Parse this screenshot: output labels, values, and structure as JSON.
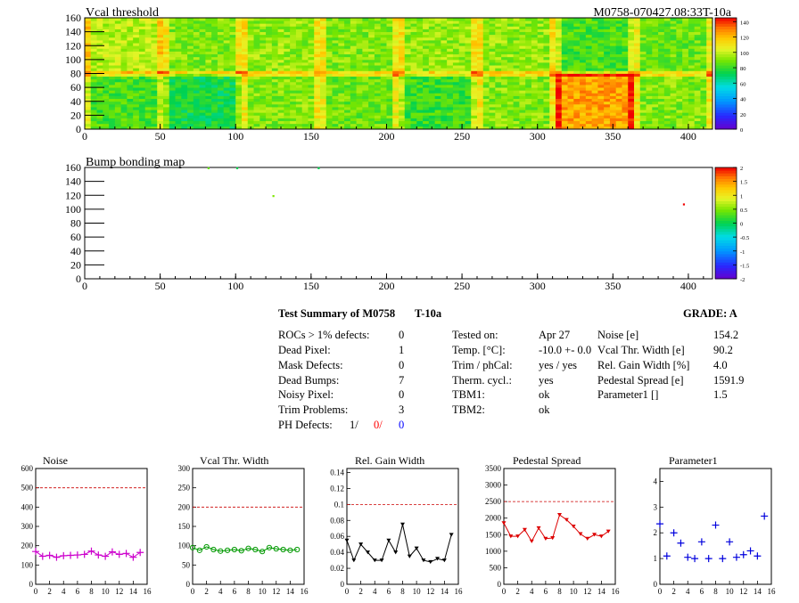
{
  "maps": [
    {
      "title": "Vcal threshold",
      "module_label": "M0758-070427.08:33T-10a",
      "xlim": [
        0,
        416
      ],
      "ylim": [
        0,
        160
      ],
      "x_ticks": [
        "0",
        "50",
        "100",
        "150",
        "200",
        "250",
        "300",
        "350",
        "400"
      ],
      "y_ticks": [
        "0",
        "20",
        "40",
        "60",
        "80",
        "100",
        "120",
        "140",
        "160"
      ],
      "z_ticks": [
        "0",
        "20",
        "40",
        "60",
        "80",
        "100",
        "120",
        "140"
      ],
      "zlim": [
        0,
        145
      ]
    },
    {
      "title": "Bump bonding map",
      "xlim": [
        0,
        416
      ],
      "ylim": [
        0,
        160
      ],
      "x_ticks": [
        "0",
        "50",
        "100",
        "150",
        "200",
        "250",
        "300",
        "350",
        "400"
      ],
      "y_ticks": [
        "0",
        "20",
        "40",
        "60",
        "80",
        "100",
        "120",
        "140",
        "160"
      ],
      "z_ticks": [
        "-2",
        "-1.5",
        "-1",
        "-0.5",
        "0",
        "0.5",
        "1",
        "1.5",
        "2"
      ],
      "zlim": [
        -2,
        2
      ]
    }
  ],
  "summary": {
    "title": "Test Summary of M0758",
    "test_tag": "T-10a",
    "grade_label": "GRADE:  A",
    "defects": [
      {
        "label": "ROCs > 1% defects:",
        "value": "0"
      },
      {
        "label": "Dead Pixel:",
        "value": "1"
      },
      {
        "label": "Mask Defects:",
        "value": "0"
      },
      {
        "label": "Dead Bumps:",
        "value": "7"
      },
      {
        "label": "Noisy Pixel:",
        "value": "0"
      },
      {
        "label": "Trim Problems:",
        "value": "3"
      }
    ],
    "ph_defects": {
      "label": "PH Defects:",
      "v1": "1/",
      "v2": "0/",
      "v3": "0"
    },
    "conditions": [
      {
        "label": "Tested on:",
        "value": "Apr 27"
      },
      {
        "label": "Temp. [°C]:",
        "value": "-10.0 +- 0.0"
      },
      {
        "label": "Trim / phCal:",
        "value": "yes / yes"
      },
      {
        "label": "Therm. cycl.:",
        "value": "yes"
      },
      {
        "label": "TBM1:",
        "value": "ok"
      },
      {
        "label": "TBM2:",
        "value": "ok"
      }
    ],
    "parameters": [
      {
        "label": "Noise [e]",
        "value": "154.2"
      },
      {
        "label": "Vcal Thr. Width [e]",
        "value": "90.2"
      },
      {
        "label": "Rel. Gain Width [%]",
        "value": "4.0"
      },
      {
        "label": "Pedestal Spread [e]",
        "value": "1591.9"
      },
      {
        "label": "Parameter1 []",
        "value": "1.5"
      }
    ]
  },
  "colors": {
    "noise": "#cc00cc",
    "vcal": "#009900",
    "gain": "#000000",
    "pedestal": "#dd0000",
    "param1": "#0000dd",
    "limit_line": "#cc0000",
    "ph_red": "#ff0000",
    "ph_blue": "#0000ff"
  },
  "chart_data": [
    {
      "type": "heatmap",
      "title": "Vcal threshold",
      "description_values": "per-ROC mean threshold",
      "x_ticks": [
        0,
        50,
        100,
        150,
        200,
        250,
        300,
        350,
        400
      ],
      "y_ticks": [
        0,
        20,
        40,
        60,
        80,
        100,
        120,
        140,
        160
      ],
      "z_range": [
        0,
        140
      ],
      "roc_means_top": [
        95,
        88,
        90,
        88,
        90,
        90,
        80,
        85
      ],
      "roc_means_bottom": [
        80,
        72,
        88,
        85,
        78,
        88,
        120,
        88
      ]
    },
    {
      "type": "scatter",
      "title": "Bump bonding map",
      "points": [
        {
          "x": 82,
          "y": 159,
          "z": 0.4
        },
        {
          "x": 101,
          "y": 159,
          "z": 0.0
        },
        {
          "x": 155,
          "y": 159,
          "z": 0.0
        },
        {
          "x": 125,
          "y": 119,
          "z": 0.5
        },
        {
          "x": 397,
          "y": 107,
          "z": 2.0
        }
      ],
      "z_range": [
        -2,
        2
      ]
    },
    {
      "type": "line",
      "title": "Noise",
      "x": [
        0,
        1,
        2,
        3,
        4,
        5,
        6,
        7,
        8,
        9,
        10,
        11,
        12,
        13,
        14,
        15
      ],
      "values": [
        170,
        145,
        150,
        140,
        148,
        150,
        152,
        155,
        172,
        152,
        145,
        168,
        155,
        160,
        140,
        165
      ],
      "xlim": [
        0,
        16
      ],
      "ylim": [
        0,
        600
      ],
      "y_ticks": [
        0,
        100,
        200,
        300,
        400,
        500,
        600
      ],
      "limit": 500
    },
    {
      "type": "line",
      "title": "Vcal Thr. Width",
      "x": [
        0,
        1,
        2,
        3,
        4,
        5,
        6,
        7,
        8,
        9,
        10,
        11,
        12,
        13,
        14,
        15
      ],
      "values": [
        95,
        88,
        97,
        90,
        86,
        88,
        90,
        87,
        93,
        90,
        85,
        95,
        92,
        90,
        88,
        90
      ],
      "xlim": [
        0,
        16
      ],
      "ylim": [
        0,
        300
      ],
      "y_ticks": [
        0,
        50,
        100,
        150,
        200,
        250,
        300
      ],
      "limit": 200
    },
    {
      "type": "line",
      "title": "Rel. Gain Width",
      "x": [
        0,
        1,
        2,
        3,
        4,
        5,
        6,
        7,
        8,
        9,
        10,
        11,
        12,
        13,
        14,
        15
      ],
      "values": [
        0.055,
        0.03,
        0.05,
        0.04,
        0.03,
        0.03,
        0.055,
        0.04,
        0.075,
        0.035,
        0.045,
        0.03,
        0.028,
        0.032,
        0.03,
        0.062
      ],
      "xlim": [
        0,
        16
      ],
      "ylim": [
        0,
        0.145
      ],
      "y_ticks": [
        0,
        0.02,
        0.04,
        0.06,
        0.08,
        0.1,
        0.12,
        0.14
      ],
      "limit": 0.1
    },
    {
      "type": "line",
      "title": "Pedestal Spread",
      "x": [
        0,
        1,
        2,
        3,
        4,
        5,
        6,
        7,
        8,
        9,
        10,
        11,
        12,
        13,
        14,
        15
      ],
      "values": [
        1850,
        1450,
        1450,
        1650,
        1300,
        1700,
        1380,
        1400,
        2100,
        1950,
        1750,
        1520,
        1380,
        1500,
        1450,
        1600
      ],
      "xlim": [
        0,
        16
      ],
      "ylim": [
        0,
        3500
      ],
      "y_ticks": [
        0,
        500,
        1000,
        1500,
        2000,
        2500,
        3000,
        3500
      ],
      "limit": 2500
    },
    {
      "type": "scatter",
      "title": "Parameter1",
      "x": [
        0,
        1,
        2,
        3,
        4,
        5,
        6,
        7,
        8,
        9,
        10,
        11,
        12,
        13,
        14,
        15
      ],
      "values": [
        2.35,
        1.1,
        2.0,
        1.6,
        1.05,
        1.0,
        1.65,
        1.0,
        2.3,
        1.0,
        1.65,
        1.05,
        1.15,
        1.3,
        1.1,
        2.65
      ],
      "xlim": [
        0,
        16
      ],
      "ylim": [
        0,
        4.5
      ],
      "y_ticks": [
        0,
        1,
        2,
        3,
        4
      ]
    }
  ]
}
